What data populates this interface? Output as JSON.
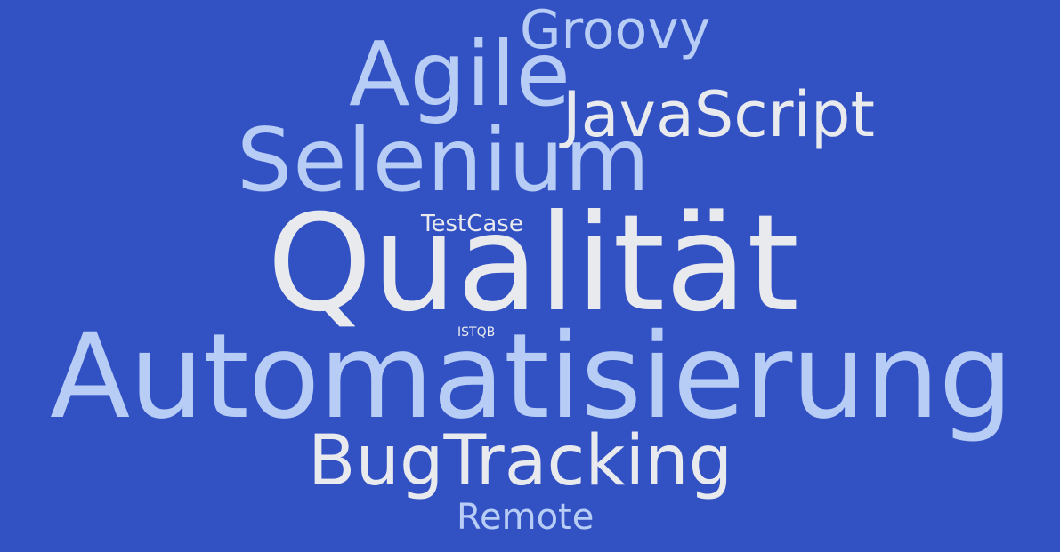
{
  "colors": {
    "background": "#3252c4",
    "light": "#e9eaee",
    "blue": "#b8cdf5"
  },
  "words": {
    "groovy": "Groovy",
    "agile": "Agile",
    "javascript": "JavaScript",
    "selenium": "Selenium",
    "testcase": "TestCase",
    "qualitat": "Qualität",
    "istqb": "ISTQB",
    "automatisierung": "Automatisierung",
    "bugtracking": "BugTracking",
    "remote": "Remote"
  }
}
